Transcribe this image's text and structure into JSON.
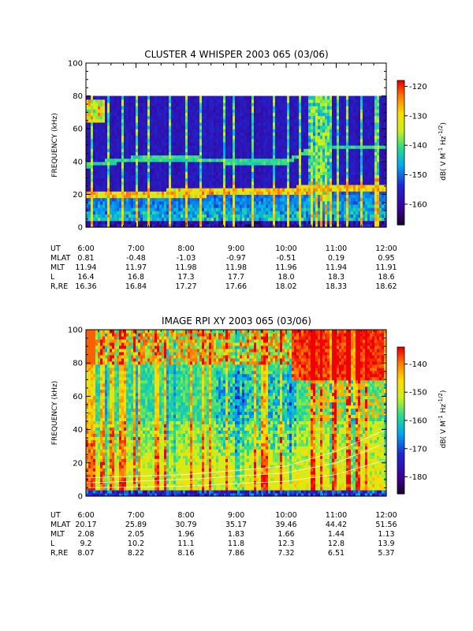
{
  "chart_data": [
    {
      "type": "heatmap",
      "title": "CLUSTER 4 WHISPER 2003 065 (03/06)",
      "ylabel": "FREQUENCY (kHz)",
      "ylim": [
        0,
        100
      ],
      "yticks": [
        "0",
        "20",
        "40",
        "60",
        "80",
        "100"
      ],
      "colorbar": {
        "label": "dB( V M",
        "label_sup1": "-1",
        "label_mid": " Hz",
        "label_sup2": "-1/2",
        "label_end": ")",
        "range": [
          -167,
          -118
        ],
        "ticks": [
          "-120",
          "-130",
          "-140",
          "-150",
          "-160"
        ],
        "tick_values": [
          -120,
          -130,
          -140,
          -150,
          -160
        ],
        "colormap": "rainbow"
      },
      "data_extent_khz": [
        0,
        80
      ],
      "x": [
        "6:00",
        "7:00",
        "8:00",
        "9:00",
        "10:00",
        "11:00",
        "12:00"
      ],
      "ephemeris": [
        {
          "label": "UT",
          "values": [
            "6:00",
            "7:00",
            "8:00",
            "9:00",
            "10:00",
            "11:00",
            "12:00"
          ]
        },
        {
          "label": "MLAT",
          "values": [
            "0.81",
            "-0.48",
            "-1.03",
            "-0.97",
            "-0.51",
            "0.19",
            "0.95"
          ]
        },
        {
          "label": "MLT",
          "values": [
            "11.94",
            "11.97",
            "11.98",
            "11.98",
            "11.96",
            "11.94",
            "11.91"
          ]
        },
        {
          "label": "L",
          "values": [
            "16.4",
            "16.8",
            "17.3",
            "17.7",
            "18.0",
            "18.3",
            "18.6"
          ]
        },
        {
          "label": "R,RE",
          "values": [
            "16.36",
            "16.84",
            "17.27",
            "17.66",
            "18.02",
            "18.33",
            "18.62"
          ]
        }
      ],
      "features": {
        "plasma_line_khz": [
          {
            "t": 6.0,
            "f": 19.5
          },
          {
            "t": 7.0,
            "f": 20.5
          },
          {
            "t": 8.0,
            "f": 21.0
          },
          {
            "t": 9.0,
            "f": 21.5
          },
          {
            "t": 10.0,
            "f": 22.5
          },
          {
            "t": 11.0,
            "f": 24.0
          },
          {
            "t": 12.0,
            "f": 24.5
          }
        ],
        "harmonic_line_khz": [
          {
            "t": 6.0,
            "f": 38
          },
          {
            "t": 7.0,
            "f": 42
          },
          {
            "t": 8.0,
            "f": 42
          },
          {
            "t": 9.0,
            "f": 40
          },
          {
            "t": 10.0,
            "f": 40
          },
          {
            "t": 10.6,
            "f": 49
          },
          {
            "t": 12.0,
            "f": 49
          }
        ]
      }
    },
    {
      "type": "heatmap",
      "title": "IMAGE RPI XY 2003 065 (03/06)",
      "ylabel": "FREQUENCY (kHz)",
      "ylim": [
        0,
        100
      ],
      "yticks": [
        "0",
        "20",
        "40",
        "60",
        "80",
        "100"
      ],
      "colorbar": {
        "label": "dB( V M",
        "label_sup1": "-1",
        "label_mid": " Hz",
        "label_sup2": "-1/2",
        "label_end": ")",
        "range": [
          -186,
          -134
        ],
        "ticks": [
          "-140",
          "-150",
          "-160",
          "-170",
          "-180"
        ],
        "tick_values": [
          -140,
          -150,
          -160,
          -170,
          -180
        ],
        "colormap": "rainbow"
      },
      "x": [
        "6:00",
        "7:00",
        "8:00",
        "9:00",
        "10:00",
        "11:00",
        "12:00"
      ],
      "ephemeris": [
        {
          "label": "UT",
          "values": [
            "6:00",
            "7:00",
            "8:00",
            "9:00",
            "10:00",
            "11:00",
            "12:00"
          ]
        },
        {
          "label": "MLAT",
          "values": [
            "20.17",
            "25.89",
            "30.79",
            "35.17",
            "39.46",
            "44.42",
            "51.56"
          ]
        },
        {
          "label": "MLT",
          "values": [
            "2.08",
            "2.05",
            "1.96",
            "1.83",
            "1.66",
            "1.44",
            "1.13"
          ]
        },
        {
          "label": "L",
          "values": [
            "9.2",
            "10.2",
            "11.1",
            "11.8",
            "12.3",
            "12.8",
            "13.9"
          ]
        },
        {
          "label": "R,RE",
          "values": [
            "8.07",
            "8.22",
            "8.16",
            "7.86",
            "7.32",
            "6.51",
            "5.37"
          ]
        }
      ],
      "overlay_curves_khz": [
        [
          {
            "t": 6.0,
            "f": 5
          },
          {
            "t": 8.0,
            "f": 6
          },
          {
            "t": 10.0,
            "f": 9
          },
          {
            "t": 11.0,
            "f": 13
          },
          {
            "t": 12.0,
            "f": 22
          }
        ],
        [
          {
            "t": 6.0,
            "f": 8
          },
          {
            "t": 8.0,
            "f": 10
          },
          {
            "t": 10.0,
            "f": 14
          },
          {
            "t": 11.0,
            "f": 20
          },
          {
            "t": 12.0,
            "f": 32
          }
        ],
        [
          {
            "t": 6.0,
            "f": 11
          },
          {
            "t": 8.0,
            "f": 13
          },
          {
            "t": 10.0,
            "f": 18
          },
          {
            "t": 11.0,
            "f": 27
          },
          {
            "t": 12.0,
            "f": 40
          }
        ]
      ]
    }
  ]
}
